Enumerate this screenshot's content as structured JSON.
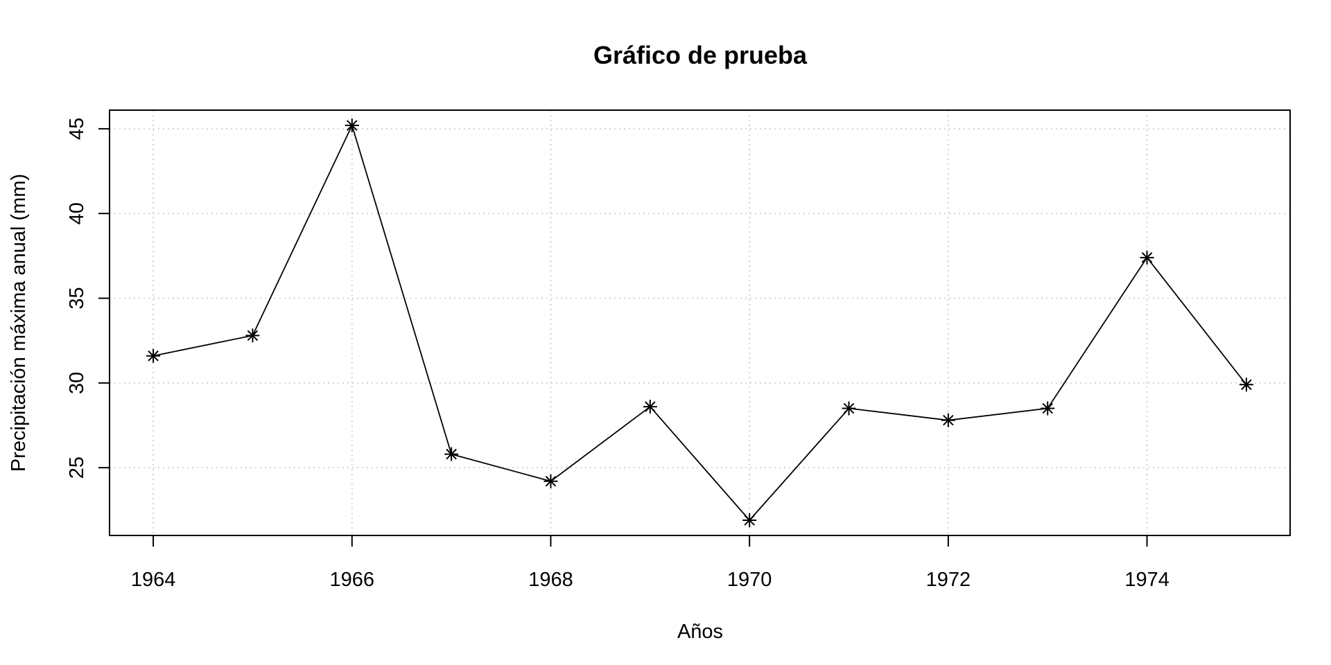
{
  "chart_data": {
    "type": "line",
    "title": "Gráfico de prueba",
    "xlabel": "Años",
    "ylabel": "Precipitación máxima anual (mm)",
    "x": [
      1964,
      1965,
      1966,
      1967,
      1968,
      1969,
      1970,
      1971,
      1972,
      1973,
      1974,
      1975
    ],
    "series": [
      {
        "values": [
          31.6,
          32.8,
          45.2,
          25.8,
          24.2,
          28.6,
          21.9,
          28.5,
          27.8,
          28.5,
          37.4,
          29.9
        ],
        "marker": "asterisk",
        "color": "#000000"
      }
    ],
    "xlim": [
      1963.56,
      1975.44
    ],
    "ylim": [
      21.0,
      46.1
    ],
    "x_ticks": [
      1964,
      1966,
      1968,
      1970,
      1972,
      1974
    ],
    "y_ticks": [
      25,
      30,
      35,
      40,
      45
    ],
    "grid": true,
    "grid_style": "dotted",
    "grid_color": "#d3d3d3"
  }
}
